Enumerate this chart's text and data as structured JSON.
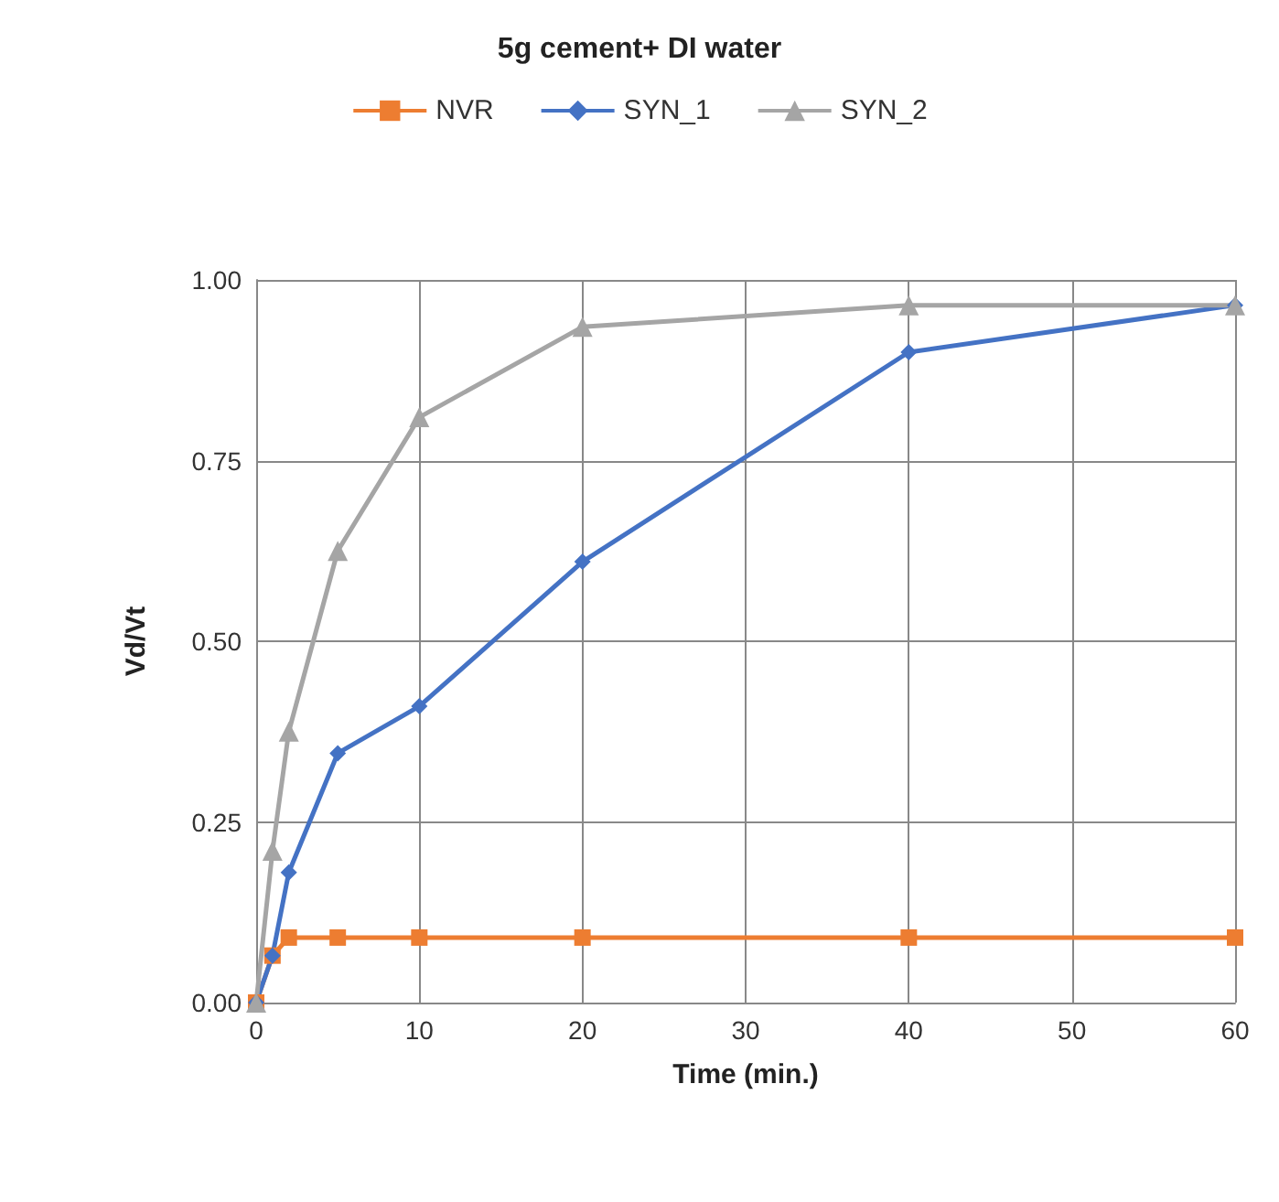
{
  "chart_data": {
    "type": "line",
    "title": "5g cement+ DI water",
    "xlabel": "Time (min.)",
    "ylabel": "Vd/Vt",
    "x": [
      0,
      1,
      2,
      5,
      10,
      20,
      40,
      60
    ],
    "series": [
      {
        "name": "NVR",
        "color": "#ed7d31",
        "marker": "square",
        "values": [
          0,
          0.065,
          0.09,
          0.09,
          0.09,
          0.09,
          0.09,
          0.09
        ]
      },
      {
        "name": "SYN_1",
        "color": "#4472c4",
        "marker": "diamond",
        "values": [
          0,
          0.065,
          0.18,
          0.345,
          0.41,
          0.61,
          0.9,
          0.965
        ]
      },
      {
        "name": "SYN_2",
        "color": "#a5a5a5",
        "marker": "triangle",
        "values": [
          0,
          0.21,
          0.375,
          0.625,
          0.81,
          0.935,
          0.965,
          0.965
        ]
      }
    ],
    "xlim": [
      0,
      60
    ],
    "xticks": [
      0,
      10,
      20,
      30,
      40,
      50,
      60
    ],
    "ylim": [
      0,
      1
    ],
    "yticks": [
      {
        "value": 0,
        "label": "0.00"
      },
      {
        "value": 0.25,
        "label": "0.25"
      },
      {
        "value": 0.5,
        "label": "0.50"
      },
      {
        "value": 0.75,
        "label": "0.75"
      },
      {
        "value": 1,
        "label": "1.00"
      }
    ],
    "grid": true,
    "legend": "top"
  }
}
